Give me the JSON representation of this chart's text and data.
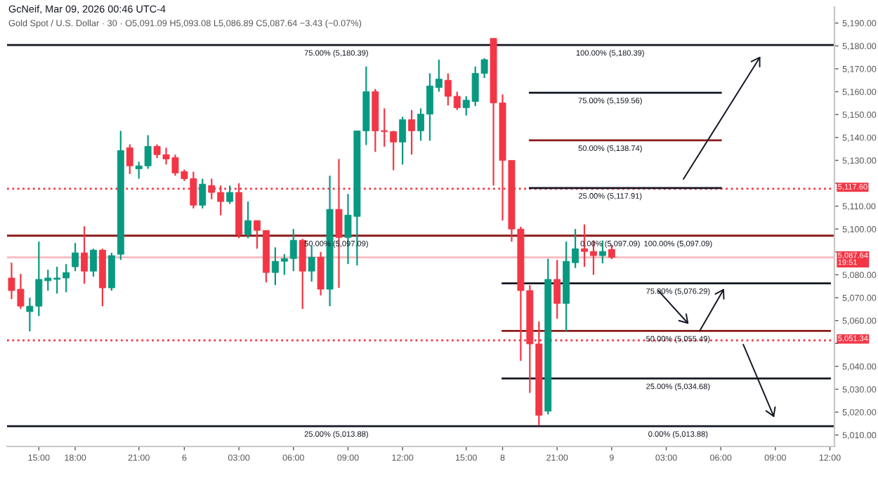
{
  "chart_data": {
    "type": "candlestick",
    "title": "GcNeif, Mar 09, 2026 00:46 UTC-4",
    "subtitle": "Gold Spot / U.S. Dollar · 30 · O5,091.09 H5,093.08 L5,086.89 C5,087.64 −3.43 (−0.07%)",
    "categories": [
      null,
      null,
      null,
      "15:00",
      null,
      null,
      null,
      "18:00",
      null,
      null,
      null,
      null,
      null,
      null,
      "21:00",
      null,
      null,
      null,
      null,
      "6",
      null,
      null,
      null,
      null,
      null,
      "03:00",
      null,
      null,
      null,
      null,
      null,
      "06:00",
      null,
      null,
      null,
      null,
      null,
      "09:00",
      null,
      null,
      null,
      null,
      null,
      "12:00",
      null,
      null,
      null,
      null,
      null,
      null,
      "15:00",
      null,
      null,
      null,
      "8",
      null,
      null,
      null,
      null,
      null,
      "21:00",
      null,
      null,
      null,
      null,
      null,
      "9",
      null,
      null,
      null,
      null,
      null,
      "03:00",
      null,
      null,
      null,
      null,
      null,
      "06:00",
      null,
      null,
      null,
      null,
      null,
      "09:00",
      null,
      null,
      null,
      null,
      null,
      "12:00"
    ],
    "ohlc": [
      [
        5078.6,
        5085.3,
        5069.4,
        5073.1
      ],
      [
        5073.7,
        5080.4,
        5065.1,
        5066.3
      ],
      [
        5063.9,
        5070,
        5055.3,
        5066.3
      ],
      [
        5066.3,
        5094.5,
        5062.0,
        5078.0
      ],
      [
        5077.4,
        5082.2,
        5073.1,
        5078.6
      ],
      [
        5078.0,
        5083.5,
        5071.8,
        5078.6
      ],
      [
        5078.6,
        5084.7,
        5072.4,
        5081.0
      ],
      [
        5083.5,
        5093.9,
        5081.6,
        5089.6
      ],
      [
        5089.6,
        5101.2,
        5076.1,
        5081.6
      ],
      [
        5081.6,
        5091.4,
        5079.2,
        5090.8
      ],
      [
        5090.8,
        5091.4,
        5066.3,
        5074.3
      ],
      [
        5074.3,
        5089.6,
        5073.1,
        5088.4
      ],
      [
        5089.0,
        5142.9,
        5086.5,
        5134.3
      ],
      [
        5135.5,
        5137,
        5124,
        5127.6
      ],
      [
        5126.3,
        5129.4,
        5122,
        5127.6
      ],
      [
        5127.6,
        5141,
        5126.3,
        5136.1
      ],
      [
        5136.1,
        5137,
        5131,
        5132.5
      ],
      [
        5132.5,
        5135.5,
        5128.2,
        5130.6
      ],
      [
        5131.2,
        5132.5,
        5123.3,
        5124.5
      ],
      [
        5125.1,
        5126,
        5121,
        5122
      ],
      [
        5122,
        5125,
        5109,
        5110.4
      ],
      [
        5110.4,
        5122,
        5109,
        5119.6
      ],
      [
        5119,
        5122,
        5113,
        5116
      ],
      [
        5116,
        5119,
        5106,
        5112
      ],
      [
        5112,
        5119,
        5111,
        5116
      ],
      [
        5116,
        5120,
        5096,
        5097.6
      ],
      [
        5097.6,
        5112,
        5096,
        5103.7
      ],
      [
        5103.7,
        5103.7,
        5091.4,
        5099.4
      ],
      [
        5099.4,
        5099.4,
        5076.7,
        5081.0
      ],
      [
        5081.0,
        5092,
        5075.5,
        5085.9
      ],
      [
        5085.9,
        5089,
        5080,
        5087.1
      ],
      [
        5087.1,
        5100,
        5081.6,
        5095.1
      ],
      [
        5095.1,
        5095.7,
        5065.1,
        5081.6
      ],
      [
        5081.6,
        5092.6,
        5077,
        5087.7
      ],
      [
        5087.7,
        5090,
        5071,
        5073.7
      ],
      [
        5073.7,
        5123.3,
        5066.3,
        5108.6
      ],
      [
        5108.6,
        5130.6,
        5074.3,
        5096.3
      ],
      [
        5096.3,
        5115.3,
        5084.7,
        5106.1
      ],
      [
        5105.5,
        5142.9,
        5084.1,
        5142.9
      ],
      [
        5142.9,
        5171,
        5136.7,
        5160
      ],
      [
        5160,
        5161.2,
        5133.7,
        5142.9
      ],
      [
        5143,
        5152.7,
        5136,
        5142.6
      ],
      [
        5142.6,
        5142.9,
        5125.7,
        5138
      ],
      [
        5138,
        5149,
        5128.2,
        5147.8
      ],
      [
        5147.8,
        5152,
        5132.5,
        5142.9
      ],
      [
        5142.9,
        5152.7,
        5138.6,
        5150.2
      ],
      [
        5150.2,
        5168,
        5138.6,
        5162.5
      ],
      [
        5161.8,
        5174,
        5160,
        5165.5
      ],
      [
        5165,
        5168,
        5154,
        5158
      ],
      [
        5158,
        5160,
        5152,
        5153
      ],
      [
        5153,
        5158,
        5149.6,
        5156.3
      ],
      [
        5155.7,
        5171,
        5153.7,
        5168
      ],
      [
        5168,
        5174.6,
        5166,
        5174
      ],
      [
        5183.3,
        5183.3,
        5119,
        5155.1
      ],
      [
        5155.1,
        5158.8,
        5103.7,
        5130
      ],
      [
        5130,
        5130,
        5094.5,
        5100
      ],
      [
        5100,
        5101,
        5042.4,
        5073.1
      ],
      [
        5073.1,
        5075.5,
        5028.4,
        5049.8
      ],
      [
        5049.8,
        5059.6,
        5014.3,
        5018.6
      ],
      [
        5020.4,
        5087,
        5019,
        5078
      ],
      [
        5078,
        5086.5,
        5060.8,
        5067.5
      ],
      [
        5067.5,
        5094.5,
        5055.3,
        5085.9
      ],
      [
        5085.3,
        5100,
        5083,
        5091.4
      ],
      [
        5091.4,
        5102,
        5083.5,
        5090.2
      ],
      [
        5090.2,
        5095,
        5080,
        5088.4
      ],
      [
        5088.4,
        5095,
        5085,
        5090.2
      ],
      [
        5091.09,
        5093.08,
        5086.89,
        5087.64
      ],
      null,
      null,
      null,
      null,
      null,
      null,
      null,
      null,
      null,
      null,
      null,
      null,
      null,
      null,
      null,
      null,
      null,
      null,
      null,
      null,
      null,
      null,
      null,
      null
    ],
    "series": [
      {
        "type": "line",
        "color": "#131722",
        "values": [
          null,
          null,
          null,
          null,
          null,
          null,
          null,
          null,
          null,
          null,
          null,
          null,
          null,
          null,
          null,
          null,
          null,
          null,
          null,
          null,
          null,
          null,
          null,
          null,
          null,
          null,
          null,
          null,
          null,
          null,
          null,
          null,
          null,
          null,
          null,
          null,
          null,
          null,
          null,
          null,
          null,
          null,
          null,
          null,
          null,
          null,
          null,
          null,
          null,
          null,
          null,
          null,
          null,
          null,
          null,
          null,
          null,
          5159.56,
          5159.56,
          5159.56,
          5159.56,
          5159.56,
          5159.56,
          5159.56,
          5159.56,
          5159.56,
          5159.56,
          5159.56,
          5159.56,
          5159.56,
          5159.56,
          5159.56,
          5159.56,
          5159.56,
          5159.56,
          5159.56,
          5159.56,
          5159.56,
          5159.56,
          null,
          null,
          null,
          null,
          null,
          null,
          null,
          null,
          null,
          null,
          null,
          null
        ]
      },
      {
        "type": "line",
        "color": "#8b1a1a",
        "values": [
          null,
          null,
          null,
          null,
          null,
          null,
          null,
          null,
          null,
          null,
          null,
          null,
          null,
          null,
          null,
          null,
          null,
          null,
          null,
          null,
          null,
          null,
          null,
          null,
          null,
          null,
          null,
          null,
          null,
          null,
          null,
          null,
          null,
          null,
          null,
          null,
          null,
          null,
          null,
          null,
          null,
          null,
          null,
          null,
          null,
          null,
          null,
          null,
          null,
          null,
          null,
          null,
          null,
          null,
          null,
          null,
          null,
          5138.74,
          5138.74,
          5138.74,
          5138.74,
          5138.74,
          5138.74,
          5138.74,
          5138.74,
          5138.74,
          5138.74,
          5138.74,
          5138.74,
          5138.74,
          5138.74,
          5138.74,
          5138.74,
          5138.74,
          5138.74,
          5138.74,
          5138.74,
          5138.74,
          5138.74,
          null,
          null,
          null,
          null,
          null,
          null,
          null,
          null,
          null,
          null,
          null,
          null
        ]
      },
      {
        "type": "line",
        "color": "#131722",
        "values": [
          null,
          null,
          null,
          null,
          null,
          null,
          null,
          null,
          null,
          null,
          null,
          null,
          null,
          null,
          null,
          null,
          null,
          null,
          null,
          null,
          null,
          null,
          null,
          null,
          null,
          null,
          null,
          null,
          null,
          null,
          null,
          null,
          null,
          null,
          null,
          null,
          null,
          null,
          null,
          null,
          null,
          null,
          null,
          null,
          null,
          null,
          null,
          null,
          null,
          null,
          null,
          null,
          null,
          null,
          null,
          null,
          null,
          5117.91,
          5117.91,
          5117.91,
          5117.91,
          5117.91,
          5117.91,
          5117.91,
          5117.91,
          5117.91,
          5117.91,
          5117.91,
          5117.91,
          5117.91,
          5117.91,
          5117.91,
          5117.91,
          5117.91,
          5117.91,
          5117.91,
          5117.91,
          5117.91,
          5117.91,
          null,
          null,
          null,
          null,
          null,
          null,
          null,
          null,
          null,
          null,
          null,
          null
        ]
      },
      {
        "type": "line",
        "color": "#131722",
        "values": [
          null,
          null,
          null,
          null,
          null,
          null,
          null,
          null,
          null,
          null,
          null,
          null,
          null,
          null,
          null,
          null,
          null,
          null,
          null,
          null,
          null,
          null,
          null,
          null,
          null,
          null,
          null,
          null,
          null,
          null,
          null,
          null,
          null,
          null,
          null,
          null,
          null,
          null,
          null,
          null,
          null,
          null,
          null,
          null,
          null,
          null,
          null,
          null,
          null,
          null,
          null,
          null,
          null,
          null,
          5076.29,
          5076.29,
          5076.29,
          5076.29,
          5076.29,
          5076.29,
          5076.29,
          5076.29,
          5076.29,
          5076.29,
          5076.29,
          5076.29,
          5076.29,
          5076.29,
          5076.29,
          5076.29,
          5076.29,
          5076.29,
          5076.29,
          5076.29,
          5076.29,
          5076.29,
          5076.29,
          5076.29,
          5076.29,
          5076.29,
          5076.29,
          5076.29,
          5076.29,
          5076.29,
          5076.29,
          5076.29,
          5076.29,
          5076.29,
          5076.29,
          5076.29,
          5076.29
        ]
      },
      {
        "type": "line",
        "color": "#8b1a1a",
        "values": [
          null,
          null,
          null,
          null,
          null,
          null,
          null,
          null,
          null,
          null,
          null,
          null,
          null,
          null,
          null,
          null,
          null,
          null,
          null,
          null,
          null,
          null,
          null,
          null,
          null,
          null,
          null,
          null,
          null,
          null,
          null,
          null,
          null,
          null,
          null,
          null,
          null,
          null,
          null,
          null,
          null,
          null,
          null,
          null,
          null,
          null,
          null,
          null,
          null,
          null,
          null,
          null,
          null,
          null,
          5055.49,
          5055.49,
          5055.49,
          5055.49,
          5055.49,
          5055.49,
          5055.49,
          5055.49,
          5055.49,
          5055.49,
          5055.49,
          5055.49,
          5055.49,
          5055.49,
          5055.49,
          5055.49,
          5055.49,
          5055.49,
          5055.49,
          5055.49,
          5055.49,
          5055.49,
          5055.49,
          5055.49,
          5055.49,
          5055.49,
          5055.49,
          5055.49,
          5055.49,
          5055.49,
          5055.49,
          5055.49,
          5055.49,
          5055.49,
          5055.49,
          5055.49,
          5055.49
        ]
      },
      {
        "type": "line",
        "color": "#131722",
        "values": [
          null,
          null,
          null,
          null,
          null,
          null,
          null,
          null,
          null,
          null,
          null,
          null,
          null,
          null,
          null,
          null,
          null,
          null,
          null,
          null,
          null,
          null,
          null,
          null,
          null,
          null,
          null,
          null,
          null,
          null,
          null,
          null,
          null,
          null,
          null,
          null,
          null,
          null,
          null,
          null,
          null,
          null,
          null,
          null,
          null,
          null,
          null,
          null,
          null,
          null,
          null,
          null,
          null,
          null,
          5034.68,
          5034.68,
          5034.68,
          5034.68,
          5034.68,
          5034.68,
          5034.68,
          5034.68,
          5034.68,
          5034.68,
          5034.68,
          5034.68,
          5034.68,
          5034.68,
          5034.68,
          5034.68,
          5034.68,
          5034.68,
          5034.68,
          5034.68,
          5034.68,
          5034.68,
          5034.68,
          5034.68,
          5034.68,
          5034.68,
          5034.68,
          5034.68,
          5034.68,
          5034.68,
          5034.68,
          5034.68,
          5034.68,
          5034.68,
          5034.68,
          5034.68,
          5034.68
        ]
      }
    ],
    "ref_lines": [
      {
        "axis": "y",
        "value": 5180.39,
        "color": "#131722",
        "line_style": "solid"
      },
      {
        "axis": "y",
        "value": 5097.09,
        "color": "#8b1a1a",
        "line_style": "solid"
      },
      {
        "axis": "y",
        "value": 5013.88,
        "color": "#131722",
        "line_style": "solid"
      },
      {
        "axis": "y",
        "value": 5117.6,
        "label": "5,117.60",
        "color": "#f23645",
        "line_style": "dotted"
      },
      {
        "axis": "y",
        "value": 5087.64,
        "label": "5,087.64\n19:51",
        "color": "#f23645",
        "line_style": "solid"
      },
      {
        "axis": "y",
        "value": 5051.34,
        "label": "5,051.34",
        "color": "#f23645",
        "line_style": "dotted"
      }
    ],
    "annotations": [
      {
        "text": "75.00% (5,180.39)",
        "y": 5180.39
      },
      {
        "text": "50.00% (5,097.09)",
        "y": 5097.09
      },
      {
        "text": "25.00% (5,013.88)",
        "y": 5013.88
      },
      {
        "text": "100.00% (5,180.39)",
        "y": 5180.39
      },
      {
        "text": "75.00% (5,159.56)",
        "y": 5159.56
      },
      {
        "text": "50.00% (5,138.74)",
        "y": 5138.74
      },
      {
        "text": "25.00% (5,117.91)",
        "y": 5117.91
      },
      {
        "text": "0.00% (5,097.09)",
        "y": 5097.09
      },
      {
        "text": "100.00% (5,097.09)",
        "y": 5097.09
      },
      {
        "text": "75.00% (5,076.29)",
        "y": 5076.29
      },
      {
        "text": "50.00% (5,055.49)",
        "y": 5055.49
      },
      {
        "text": "25.00% (5,034.68)",
        "y": 5034.68
      },
      {
        "text": "0.00% (5,013.88)",
        "y": 5013.88
      }
    ],
    "ylim": [
      5005,
      5197
    ],
    "yticks": [
      {
        "value": 5010,
        "label": "5,010.00"
      },
      {
        "value": 5020,
        "label": "5,020.00"
      },
      {
        "value": 5030,
        "label": "5,030.00"
      },
      {
        "value": 5040,
        "label": "5,040.00"
      },
      {
        "value": 5050,
        "label": null
      },
      {
        "value": 5060,
        "label": "5,060.00"
      },
      {
        "value": 5070,
        "label": "5,070.00"
      },
      {
        "value": 5080,
        "label": "5,080.00"
      },
      {
        "value": 5090,
        "label": null
      },
      {
        "value": 5100,
        "label": "5,100.00"
      },
      {
        "value": 5110,
        "label": "5,110.00"
      },
      {
        "value": 5120,
        "label": null
      },
      {
        "value": 5130,
        "label": "5,130.00"
      },
      {
        "value": 5140,
        "label": "5,140.00"
      },
      {
        "value": 5150,
        "label": "5,150.00"
      },
      {
        "value": 5160,
        "label": "5,160.00"
      },
      {
        "value": 5170,
        "label": "5,170.00"
      },
      {
        "value": 5180,
        "label": "5,180.00"
      },
      {
        "value": 5190,
        "label": "5,190.00"
      }
    ]
  }
}
